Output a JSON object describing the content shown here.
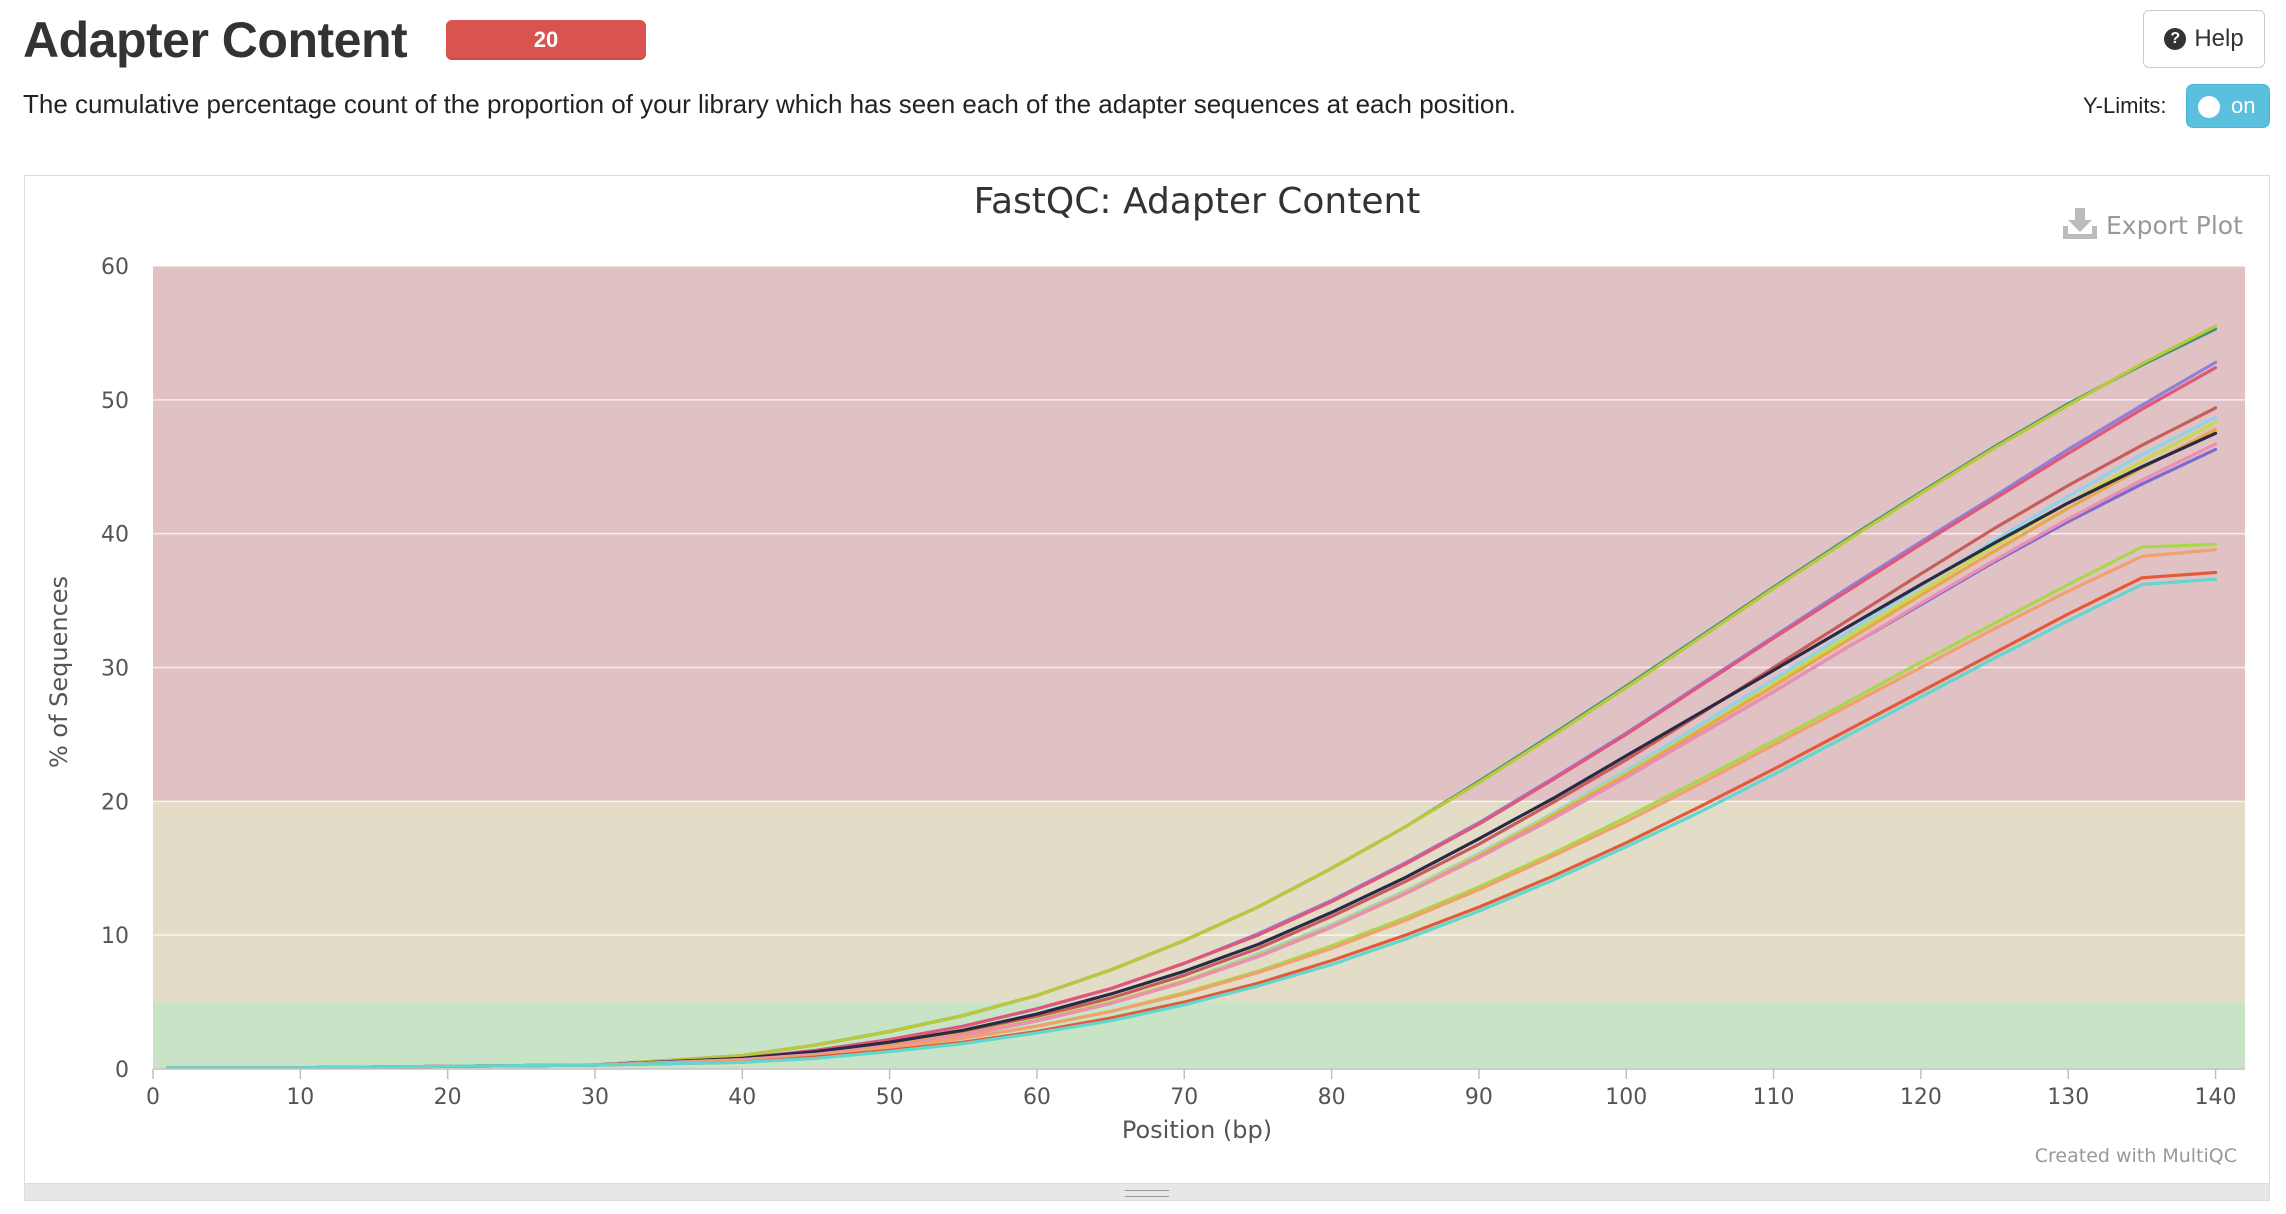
{
  "header": {
    "title": "Adapter Content",
    "badge": "20",
    "description": "The cumulative percentage count of the proportion of your library which has seen each of the adapter sequences at each position.",
    "help_label": "Help",
    "ylimits_label": "Y-Limits:",
    "toggle_label": "on"
  },
  "plot": {
    "export_label": "Export Plot",
    "credit": "Created with MultiQC"
  },
  "colors": {
    "fail_band": "#e0c2c4",
    "warn_band": "#e3dcc6",
    "pass_band": "#c8e3c6",
    "badge": "#d9534f",
    "toggle": "#5bc0de"
  },
  "chart_data": {
    "type": "line",
    "title": "FastQC: Adapter Content",
    "xlabel": "Position (bp)",
    "ylabel": "% of Sequences",
    "xlim": [
      0,
      142
    ],
    "ylim": [
      0,
      60
    ],
    "x_ticks": [
      0,
      10,
      20,
      30,
      40,
      50,
      60,
      70,
      80,
      90,
      100,
      110,
      120,
      130,
      140
    ],
    "y_ticks": [
      0,
      10,
      20,
      30,
      40,
      50,
      60
    ],
    "bands": [
      {
        "from": 20,
        "to": 60,
        "level": "fail"
      },
      {
        "from": 5,
        "to": 20,
        "level": "warn"
      },
      {
        "from": 0,
        "to": 5,
        "level": "pass"
      }
    ],
    "x": [
      1,
      10,
      20,
      30,
      40,
      45,
      50,
      55,
      60,
      65,
      70,
      75,
      80,
      85,
      90,
      95,
      100,
      105,
      110,
      115,
      120,
      125,
      130,
      135,
      140
    ],
    "series": [
      {
        "color": "#3a8f7e",
        "values": [
          0.1,
          0.1,
          0.2,
          0.3,
          1.0,
          1.8,
          2.8,
          4.0,
          5.5,
          7.4,
          9.6,
          12.1,
          15.0,
          18.1,
          21.5,
          25.0,
          28.6,
          32.3,
          36.0,
          39.6,
          43.1,
          46.5,
          49.7,
          52.6,
          55.3
        ]
      },
      {
        "color": "#b9c93a",
        "values": [
          0.1,
          0.1,
          0.2,
          0.3,
          1.0,
          1.8,
          2.8,
          4.0,
          5.5,
          7.4,
          9.6,
          12.1,
          15.0,
          18.1,
          21.4,
          24.9,
          28.5,
          32.2,
          35.9,
          39.5,
          43.0,
          46.4,
          49.6,
          52.7,
          55.5
        ]
      },
      {
        "color": "#8f80d8",
        "values": [
          0.1,
          0.1,
          0.2,
          0.3,
          0.8,
          1.4,
          2.2,
          3.2,
          4.5,
          6.0,
          7.9,
          10.1,
          12.6,
          15.4,
          18.4,
          21.7,
          25.1,
          28.7,
          32.3,
          35.9,
          39.4,
          42.8,
          46.3,
          49.6,
          52.8
        ]
      },
      {
        "color": "#e0577a",
        "values": [
          0.1,
          0.1,
          0.2,
          0.3,
          0.8,
          1.4,
          2.2,
          3.2,
          4.5,
          6.0,
          7.9,
          10.0,
          12.5,
          15.3,
          18.3,
          21.6,
          25.0,
          28.6,
          32.2,
          35.7,
          39.2,
          42.6,
          46.0,
          49.3,
          52.4
        ]
      },
      {
        "color": "#c65d5d",
        "values": [
          0.1,
          0.1,
          0.2,
          0.3,
          0.7,
          1.2,
          1.9,
          2.8,
          3.9,
          5.3,
          7.0,
          9.0,
          11.4,
          14.0,
          16.8,
          19.9,
          23.1,
          26.5,
          30.0,
          33.5,
          37.0,
          40.4,
          43.6,
          46.6,
          49.4
        ]
      },
      {
        "color": "#8fd3e8",
        "values": [
          0.1,
          0.1,
          0.2,
          0.3,
          0.7,
          1.1,
          1.8,
          2.6,
          3.7,
          5.0,
          6.6,
          8.6,
          10.8,
          13.3,
          16.1,
          19.1,
          22.3,
          25.7,
          29.1,
          32.6,
          36.1,
          39.5,
          42.8,
          45.9,
          48.7
        ]
      },
      {
        "color": "#c7d94a",
        "values": [
          0.1,
          0.1,
          0.2,
          0.3,
          0.7,
          1.1,
          1.8,
          2.6,
          3.7,
          5.0,
          6.6,
          8.5,
          10.7,
          13.2,
          16.0,
          19.0,
          22.1,
          25.4,
          28.8,
          32.3,
          35.7,
          39.1,
          42.3,
          45.4,
          48.3
        ]
      },
      {
        "color": "#e7a84a",
        "values": [
          0.1,
          0.1,
          0.2,
          0.3,
          0.7,
          1.1,
          1.8,
          2.6,
          3.6,
          4.9,
          6.5,
          8.4,
          10.6,
          13.1,
          15.9,
          18.9,
          22.0,
          25.3,
          28.6,
          32.0,
          35.4,
          38.7,
          41.9,
          44.9,
          47.8
        ]
      },
      {
        "color": "#2a2a44",
        "values": [
          0.1,
          0.1,
          0.2,
          0.3,
          0.8,
          1.3,
          2.0,
          2.9,
          4.1,
          5.6,
          7.3,
          9.3,
          11.7,
          14.3,
          17.2,
          20.2,
          23.4,
          26.6,
          29.8,
          33.0,
          36.2,
          39.3,
          42.3,
          45.0,
          47.5
        ]
      },
      {
        "color": "#7b6ad0",
        "values": [
          0.1,
          0.1,
          0.2,
          0.3,
          0.7,
          1.1,
          1.7,
          2.5,
          3.6,
          4.9,
          6.5,
          8.4,
          10.6,
          13.1,
          15.8,
          18.7,
          21.8,
          25.0,
          28.2,
          31.5,
          34.7,
          37.9,
          40.9,
          43.7,
          46.3
        ]
      },
      {
        "color": "#ec8fb0",
        "values": [
          0.1,
          0.1,
          0.2,
          0.3,
          0.7,
          1.1,
          1.7,
          2.5,
          3.6,
          4.9,
          6.5,
          8.4,
          10.6,
          13.1,
          15.8,
          18.7,
          21.8,
          25.0,
          28.2,
          31.5,
          34.8,
          38.0,
          41.1,
          44.0,
          46.7
        ]
      },
      {
        "color": "#a8d84a",
        "values": [
          0.1,
          0.1,
          0.2,
          0.3,
          0.6,
          1.0,
          1.6,
          2.3,
          3.2,
          4.3,
          5.7,
          7.3,
          9.2,
          11.3,
          13.6,
          16.1,
          18.8,
          21.6,
          24.5,
          27.4,
          30.4,
          33.3,
          36.2,
          39.0,
          39.2
        ]
      },
      {
        "color": "#f2a06e",
        "values": [
          0.1,
          0.1,
          0.2,
          0.3,
          0.6,
          1.0,
          1.6,
          2.3,
          3.2,
          4.3,
          5.6,
          7.2,
          9.0,
          11.1,
          13.4,
          15.9,
          18.5,
          21.3,
          24.2,
          27.1,
          30.0,
          32.9,
          35.7,
          38.3,
          38.8
        ]
      },
      {
        "color": "#e25a3a",
        "values": [
          0.1,
          0.1,
          0.2,
          0.3,
          0.5,
          0.9,
          1.4,
          2.0,
          2.8,
          3.8,
          5.0,
          6.4,
          8.1,
          10.0,
          12.1,
          14.4,
          16.9,
          19.6,
          22.4,
          25.3,
          28.2,
          31.1,
          34.0,
          36.7,
          37.1
        ]
      },
      {
        "color": "#5fd8d0",
        "values": [
          0.1,
          0.1,
          0.2,
          0.3,
          0.5,
          0.8,
          1.3,
          1.9,
          2.7,
          3.6,
          4.8,
          6.2,
          7.8,
          9.7,
          11.8,
          14.1,
          16.6,
          19.2,
          22.0,
          24.9,
          27.8,
          30.7,
          33.5,
          36.2,
          36.6
        ]
      }
    ]
  }
}
